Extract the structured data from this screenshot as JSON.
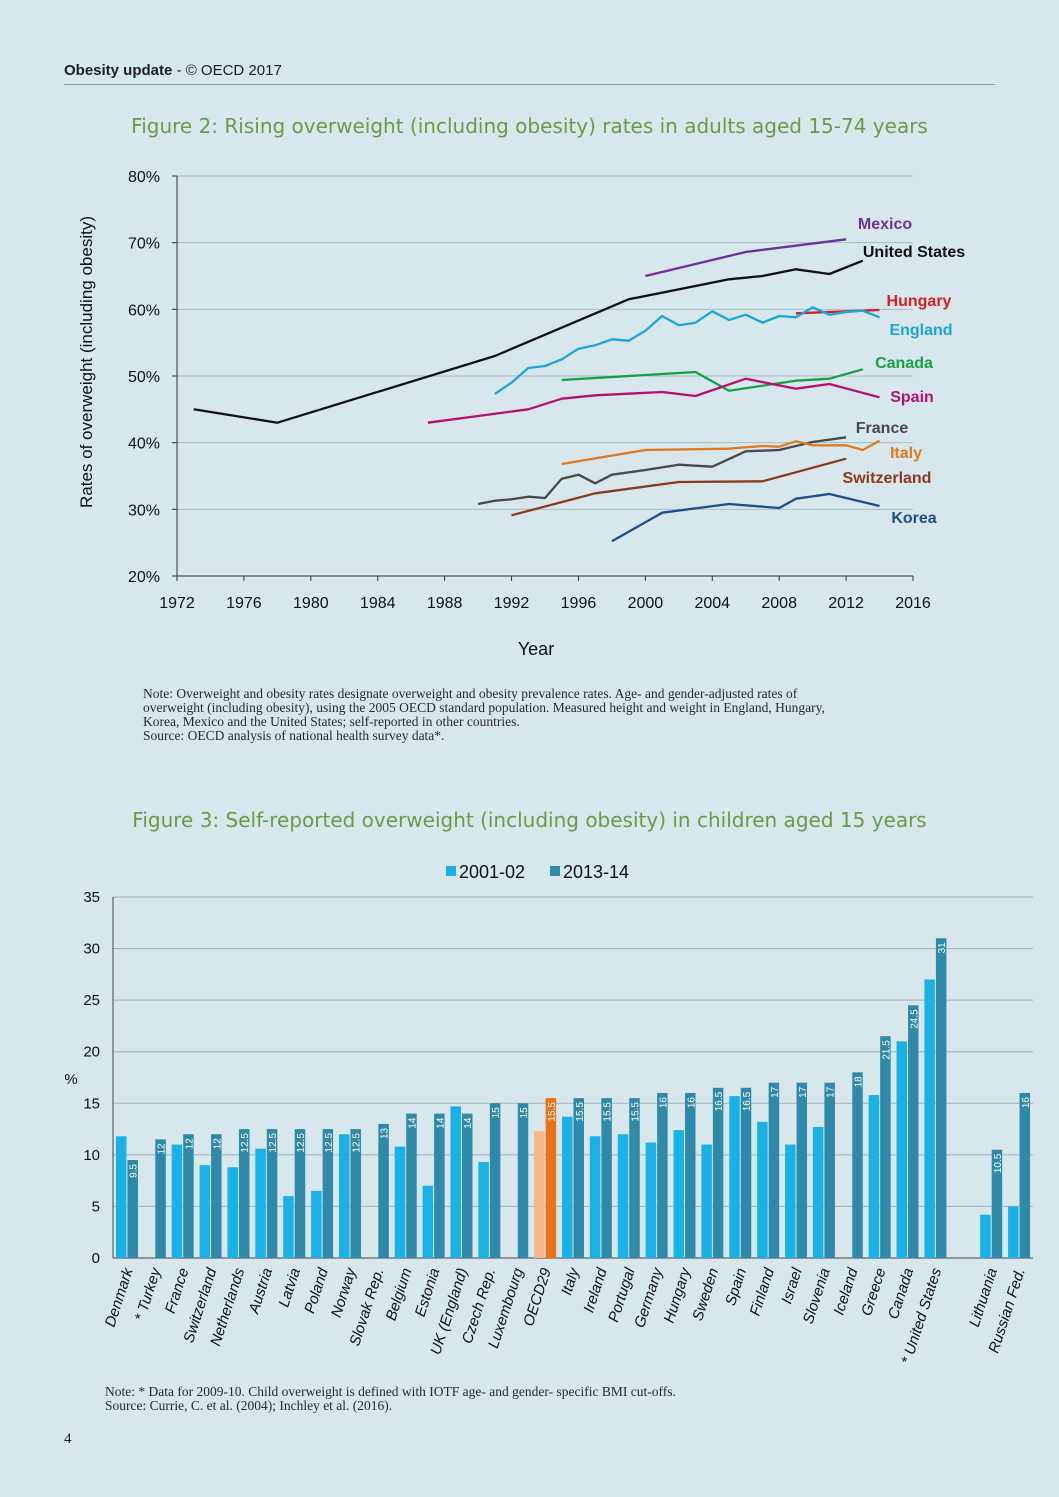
{
  "header": {
    "doc_title": "Obesity update",
    "separator": " - ",
    "copyright": "© OECD 2017"
  },
  "page_number": "4",
  "figure2": {
    "title": "Figure 2: Rising overweight (including obesity) rates in adults aged 15-74 years",
    "note_lines": [
      "Note: Overweight and obesity rates designate overweight and obesity prevalence rates. Age- and gender-adjusted rates of",
      "overweight (including obesity), using the 2005 OECD standard population. Measured height and weight in England, Hungary,",
      "Korea, Mexico and the United States; self-reported in other countries.",
      "Source: OECD analysis of national health survey data*."
    ]
  },
  "figure3": {
    "title": "Figure 3: Self-reported overweight (including obesity) in children aged 15 years",
    "note_lines": [
      "Note: * Data for 2009-10. Child overweight is defined with IOTF age- and gender- specific BMI cut-offs.",
      "Source: Currie, C. et al. (2004); Inchley et al. (2016)."
    ]
  },
  "chart_data": [
    {
      "type": "line",
      "title": "",
      "xlabel": "Year",
      "ylabel": "Rates of overweight (including obesity)",
      "xlim": [
        1972,
        2016
      ],
      "ylim": [
        20,
        80
      ],
      "x_ticks": [
        "1972",
        "1976",
        "1980",
        "1984",
        "1988",
        "1992",
        "1996",
        "2000",
        "2004",
        "2008",
        "2012",
        "2016"
      ],
      "y_ticks": [
        "20%",
        "30%",
        "40%",
        "50%",
        "60%",
        "70%",
        "80%"
      ],
      "grid": "horizontal",
      "series": [
        {
          "name": "Mexico",
          "color": "#7030a0",
          "points": [
            [
              2000,
              65.0
            ],
            [
              2006,
              68.6
            ],
            [
              2012,
              70.5
            ]
          ]
        },
        {
          "name": "United States",
          "color": "#111111",
          "points": [
            [
              1973,
              45.0
            ],
            [
              1978,
              43.0
            ],
            [
              1991,
              53.0
            ],
            [
              1999,
              61.5
            ],
            [
              2003,
              63.5
            ],
            [
              2005,
              64.5
            ],
            [
              2007,
              65.0
            ],
            [
              2009,
              66.0
            ],
            [
              2011,
              65.3
            ],
            [
              2013,
              67.3
            ]
          ]
        },
        {
          "name": "Hungary",
          "color": "#d62020",
          "points": [
            [
              2009,
              59.4
            ],
            [
              2014,
              59.9
            ]
          ]
        },
        {
          "name": "England",
          "color": "#1aa6dc",
          "points": [
            [
              1991,
              47.3
            ],
            [
              1992,
              49.0
            ],
            [
              1993,
              51.2
            ],
            [
              1994,
              51.5
            ],
            [
              1995,
              52.5
            ],
            [
              1996,
              54.1
            ],
            [
              1997,
              54.6
            ],
            [
              1998,
              55.5
            ],
            [
              1999,
              55.3
            ],
            [
              2000,
              56.8
            ],
            [
              2001,
              59.0
            ],
            [
              2002,
              57.6
            ],
            [
              2003,
              58.0
            ],
            [
              2004,
              59.7
            ],
            [
              2005,
              58.4
            ],
            [
              2006,
              59.2
            ],
            [
              2007,
              58.0
            ],
            [
              2008,
              59.0
            ],
            [
              2009,
              58.8
            ],
            [
              2010,
              60.3
            ],
            [
              2011,
              59.2
            ],
            [
              2012,
              59.6
            ],
            [
              2013,
              59.8
            ],
            [
              2014,
              58.8
            ]
          ]
        },
        {
          "name": "Canada",
          "color": "#14a046",
          "points": [
            [
              1995,
              49.4
            ],
            [
              2003,
              50.6
            ],
            [
              2005,
              47.8
            ],
            [
              2009,
              49.3
            ],
            [
              2011,
              49.6
            ],
            [
              2013,
              51.0
            ]
          ]
        },
        {
          "name": "Spain",
          "color": "#b5136b",
          "points": [
            [
              1987,
              43.0
            ],
            [
              1993,
              45.0
            ],
            [
              1995,
              46.6
            ],
            [
              1997,
              47.1
            ],
            [
              2001,
              47.6
            ],
            [
              2003,
              47.0
            ],
            [
              2006,
              49.6
            ],
            [
              2009,
              48.1
            ],
            [
              2011,
              48.8
            ],
            [
              2014,
              46.8
            ]
          ]
        },
        {
          "name": "France",
          "color": "#4a4a4a",
          "points": [
            [
              1990,
              30.8
            ],
            [
              1991,
              31.3
            ],
            [
              1992,
              31.5
            ],
            [
              1993,
              31.9
            ],
            [
              1994,
              31.7
            ],
            [
              1995,
              34.6
            ],
            [
              1996,
              35.2
            ],
            [
              1997,
              33.9
            ],
            [
              1998,
              35.2
            ],
            [
              2000,
              35.9
            ],
            [
              2002,
              36.7
            ],
            [
              2004,
              36.4
            ],
            [
              2006,
              38.7
            ],
            [
              2008,
              38.9
            ],
            [
              2010,
              40.1
            ],
            [
              2012,
              40.8
            ]
          ]
        },
        {
          "name": "Italy",
          "color": "#e07a1f",
          "points": [
            [
              1995,
              36.8
            ],
            [
              2000,
              38.9
            ],
            [
              2005,
              39.1
            ],
            [
              2007,
              39.5
            ],
            [
              2008,
              39.4
            ],
            [
              2009,
              40.2
            ],
            [
              2010,
              39.6
            ],
            [
              2012,
              39.6
            ],
            [
              2013,
              38.9
            ],
            [
              2014,
              40.3
            ]
          ]
        },
        {
          "name": "Switzerland",
          "color": "#8a3a20",
          "points": [
            [
              1992,
              29.1
            ],
            [
              1997,
              32.4
            ],
            [
              2002,
              34.1
            ],
            [
              2007,
              34.2
            ],
            [
              2012,
              37.6
            ]
          ]
        },
        {
          "name": "Korea",
          "color": "#1f4e8c",
          "points": [
            [
              1998,
              25.2
            ],
            [
              2001,
              29.5
            ],
            [
              2005,
              30.8
            ],
            [
              2008,
              30.2
            ],
            [
              2009,
              31.6
            ],
            [
              2011,
              32.3
            ],
            [
              2014,
              30.5
            ]
          ]
        }
      ]
    },
    {
      "type": "bar",
      "title": "",
      "ylabel": "%",
      "ylim": [
        0,
        35
      ],
      "y_ticks": [
        "0",
        "5",
        "10",
        "15",
        "20",
        "25",
        "30",
        "35"
      ],
      "grid": "horizontal",
      "legend_position": "top-center",
      "categories": [
        "Denmark",
        "* Turkey",
        "France",
        "Switzerland",
        "Netherlands",
        "Austria",
        "Latvia",
        "Poland",
        "Norway",
        "Slovak Rep.",
        "Belgium",
        "Estonia",
        "UK (England)",
        "Czech Rep.",
        "Luxembourg",
        "OECD29",
        "Italy",
        "Ireland",
        "Portugal",
        "Germany",
        "Hungary",
        "Sweden",
        "Spain",
        "Finland",
        "Israel",
        "Slovenia",
        "Iceland",
        "Greece",
        "Canada",
        "* United States",
        "",
        "Lithuania",
        "Russian Fed."
      ],
      "series": [
        {
          "name": "2001-02",
          "color": "#1ab2e6",
          "values": [
            11.8,
            null,
            11.0,
            9.0,
            8.8,
            10.6,
            6.0,
            6.5,
            12.0,
            null,
            10.8,
            7.0,
            14.7,
            9.3,
            null,
            12.3,
            13.7,
            11.8,
            12.0,
            11.2,
            12.4,
            11.0,
            15.7,
            13.2,
            11.0,
            12.7,
            null,
            15.8,
            21.0,
            27.0,
            null,
            4.2,
            5.0
          ]
        },
        {
          "name": "2013-14",
          "color": "#2e8aa8",
          "values": [
            9.5,
            11.5,
            12.0,
            12.0,
            12.5,
            12.5,
            12.5,
            12.5,
            12.5,
            13.0,
            14.0,
            14.0,
            14.0,
            15.0,
            15.0,
            15.5,
            15.5,
            15.5,
            15.5,
            16.0,
            16.0,
            16.5,
            16.5,
            17.0,
            17.0,
            17.0,
            18.0,
            21.5,
            24.5,
            31.0,
            null,
            10.5,
            16.0
          ]
        }
      ],
      "data_labels_2013_14": [
        "9.5",
        "12",
        "12",
        "12",
        "12.5",
        "12.5",
        "12.5",
        "12.5",
        "12.5",
        "13",
        "14",
        "14",
        "14",
        "15",
        "15",
        "15.5",
        "15.5",
        "15.5",
        "15.5",
        "16",
        "16",
        "16.5",
        "16.5",
        "17",
        "17",
        "17",
        "18",
        "21.5",
        "24.5",
        "31",
        "",
        "10.5",
        "16"
      ],
      "highlight": {
        "category": "OECD29",
        "colors": [
          "#f5b88a",
          "#e8741a"
        ]
      }
    }
  ]
}
